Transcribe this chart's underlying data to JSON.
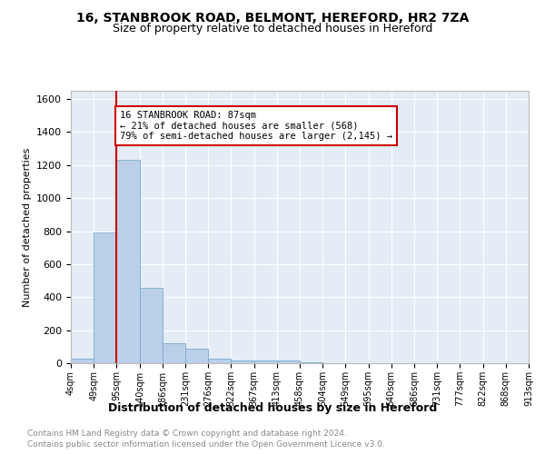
{
  "title_line1": "16, STANBROOK ROAD, BELMONT, HEREFORD, HR2 7ZA",
  "title_line2": "Size of property relative to detached houses in Hereford",
  "xlabel": "Distribution of detached houses by size in Hereford",
  "ylabel": "Number of detached properties",
  "bin_labels": [
    "4sqm",
    "49sqm",
    "95sqm",
    "140sqm",
    "186sqm",
    "231sqm",
    "276sqm",
    "322sqm",
    "367sqm",
    "413sqm",
    "458sqm",
    "504sqm",
    "549sqm",
    "595sqm",
    "640sqm",
    "686sqm",
    "731sqm",
    "777sqm",
    "822sqm",
    "868sqm",
    "913sqm"
  ],
  "bar_heights": [
    30,
    790,
    1230,
    455,
    120,
    90,
    30,
    15,
    15,
    15,
    5,
    0,
    0,
    0,
    0,
    0,
    0,
    0,
    0,
    0,
    0
  ],
  "bar_color": "#bad0e8",
  "bar_edge_color": "#7aaad0",
  "background_color": "#e4ecf5",
  "property_line_x": 2.0,
  "property_line_color": "#cc0000",
  "annotation_text": "16 STANBROOK ROAD: 87sqm\n← 21% of detached houses are smaller (568)\n79% of semi-detached houses are larger (2,145) →",
  "annotation_box_color": "#cc0000",
  "ylim": [
    0,
    1650
  ],
  "yticks": [
    0,
    200,
    400,
    600,
    800,
    1000,
    1200,
    1400,
    1600
  ],
  "footer_line1": "Contains HM Land Registry data © Crown copyright and database right 2024.",
  "footer_line2": "Contains public sector information licensed under the Open Government Licence v3.0.",
  "footer_color": "#888888"
}
